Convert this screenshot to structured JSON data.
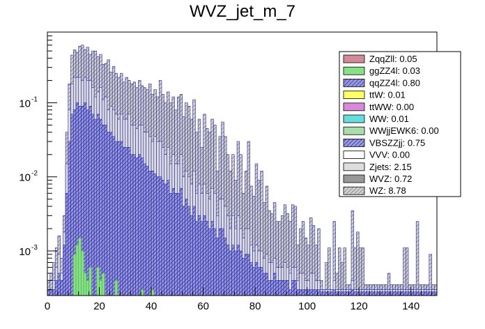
{
  "chart_data": {
    "type": "bar",
    "subtype": "stacked-histogram",
    "title": "WVZ_jet_m_7",
    "xlabel": "",
    "ylabel": "",
    "xlim": [
      0,
      150
    ],
    "ylim": [
      0.00025,
      0.9
    ],
    "yscale": "log",
    "bin_width": 1,
    "grid": false,
    "legend_position": "top-right",
    "x_ticks": [
      0,
      20,
      40,
      60,
      80,
      100,
      120,
      140
    ],
    "x_tick_labels": [
      "0",
      "20",
      "40",
      "60",
      "80",
      "100",
      "120",
      "140"
    ],
    "y_ticks": [
      0.001,
      0.01,
      0.1
    ],
    "y_tick_labels": [
      "10^{-3}",
      "10^{-2}",
      "10^{-1}"
    ],
    "legend": [
      {
        "label": "ZqqZll: 0.05",
        "color": "#d08a9a",
        "hatch": false
      },
      {
        "label": "ggZZ4l: 0.03",
        "color": "#88e088",
        "hatch": false
      },
      {
        "label": "qqZZ4l: 0.80",
        "color": "#5a5ad0",
        "hatch": true
      },
      {
        "label": "ttW: 0.01",
        "color": "#ffff66",
        "hatch": false
      },
      {
        "label": "ttWW: 0.00",
        "color": "#d88ad8",
        "hatch": false
      },
      {
        "label": "WW: 0.01",
        "color": "#66dddd",
        "hatch": false
      },
      {
        "label": "WWjjEWK6: 0.00",
        "color": "#aaddaa",
        "hatch": false
      },
      {
        "label": "VBSZZjj: 0.75",
        "color": "#8080c0",
        "hatch": true
      },
      {
        "label": "VVV: 0.00",
        "color": "#ffffff",
        "hatch": false
      },
      {
        "label": "Zjets: 2.15",
        "color": "#dddddd",
        "hatch": false
      },
      {
        "label": "WVZ: 0.72",
        "color": "#999999",
        "hatch": false
      },
      {
        "label": "WZ: 8.78",
        "color": "#b0b0b0",
        "hatch": true
      }
    ],
    "bins_low_edge": [
      0,
      1,
      2,
      3,
      4,
      5,
      6,
      7,
      8,
      9,
      10,
      11,
      12,
      13,
      14,
      15,
      16,
      17,
      18,
      19,
      20,
      21,
      22,
      23,
      24,
      25,
      26,
      27,
      28,
      29,
      30,
      31,
      32,
      33,
      34,
      35,
      36,
      37,
      38,
      39,
      40,
      41,
      42,
      43,
      44,
      45,
      46,
      47,
      48,
      49,
      50,
      51,
      52,
      53,
      54,
      55,
      56,
      57,
      58,
      59,
      60,
      61,
      62,
      63,
      64,
      65,
      66,
      67,
      68,
      69,
      70,
      71,
      72,
      73,
      74,
      75,
      76,
      77,
      78,
      79,
      80,
      81,
      82,
      83,
      84,
      85,
      86,
      87,
      88,
      89,
      90,
      91,
      92,
      93,
      94,
      95,
      96,
      97,
      98,
      99,
      100,
      101,
      102,
      103,
      104,
      105,
      106,
      107,
      108,
      109,
      110,
      111,
      112,
      113,
      114,
      115,
      116,
      117,
      118,
      119,
      120,
      121,
      122,
      123,
      124,
      125,
      126,
      127,
      128,
      129,
      130,
      131,
      132,
      133,
      134,
      135,
      136,
      137,
      138,
      139,
      140,
      141,
      142,
      143,
      144,
      145,
      146,
      147,
      148,
      149
    ],
    "series": [
      {
        "name": "WZ (stack total)",
        "values": [
          0.0004,
          0.0005,
          0.0007,
          0.0011,
          0.0016,
          0.0008,
          0.003,
          0.04,
          0.18,
          0.44,
          0.52,
          0.48,
          0.58,
          0.6,
          0.52,
          0.56,
          0.45,
          0.5,
          0.5,
          0.42,
          0.45,
          0.33,
          0.34,
          0.38,
          0.26,
          0.31,
          0.25,
          0.22,
          0.25,
          0.19,
          0.22,
          0.2,
          0.18,
          0.19,
          0.16,
          0.2,
          0.17,
          0.16,
          0.15,
          0.18,
          0.13,
          0.15,
          0.12,
          0.2,
          0.13,
          0.1,
          0.14,
          0.1,
          0.12,
          0.08,
          0.12,
          0.13,
          0.065,
          0.1,
          0.09,
          0.06,
          0.11,
          0.04,
          0.06,
          0.025,
          0.07,
          0.045,
          0.04,
          0.06,
          0.05,
          0.012,
          0.035,
          0.055,
          0.035,
          0.02,
          0.012,
          0.02,
          0.009,
          0.03,
          0.02,
          0.006,
          0.012,
          0.03,
          0.0075,
          0.0055,
          0.015,
          0.009,
          0.012,
          0.0045,
          0.0075,
          0.0035,
          0.0032,
          0.0045,
          0.0025,
          0.0025,
          0.003,
          0.0042,
          0.0032,
          0.0025,
          0.0042,
          0.004,
          0.0012,
          0.002,
          0.0025,
          0.0015,
          0.0012,
          0.0028,
          0.0022,
          0.0012,
          0.002,
          0.0004,
          0.0003,
          0.0007,
          0.0011,
          0.0003,
          0.0025,
          0.0005,
          0.0011,
          0.0007,
          0.0011,
          0.00035,
          0.00035,
          0.0035,
          0.0011,
          0.0018,
          0.0011,
          0.0011,
          0.00035,
          0.00035,
          0.00035,
          0.00035,
          0.00035,
          0.00035,
          0.00035,
          0.00035,
          0.00035,
          0.0005,
          0.00035,
          0.00035,
          0.00035,
          0.00035,
          0.00035,
          0.0011,
          0.0011,
          0.00035,
          0.00035,
          0.00035,
          0.0025,
          0.00035,
          0.00035,
          0.00035,
          0.00035,
          0.0009,
          0.00035,
          0.00035
        ]
      },
      {
        "name": "Zjets (stack below WZ)",
        "values": [
          0.0003,
          0.0003,
          0.0004,
          0.0006,
          0.0009,
          0.0005,
          0.0018,
          0.015,
          0.08,
          0.18,
          0.22,
          0.22,
          0.22,
          0.2,
          0.22,
          0.2,
          0.2,
          0.16,
          0.12,
          0.14,
          0.16,
          0.11,
          0.12,
          0.08,
          0.09,
          0.08,
          0.07,
          0.06,
          0.07,
          0.06,
          0.06,
          0.07,
          0.05,
          0.05,
          0.045,
          0.05,
          0.05,
          0.04,
          0.04,
          0.035,
          0.03,
          0.035,
          0.03,
          0.03,
          0.025,
          0.02,
          0.025,
          0.015,
          0.02,
          0.015,
          0.015,
          0.02,
          0.01,
          0.012,
          0.01,
          0.008,
          0.012,
          0.006,
          0.008,
          0.006,
          0.008,
          0.006,
          0.005,
          0.007,
          0.006,
          0.003,
          0.005,
          0.005,
          0.004,
          0.003,
          0.002,
          0.003,
          0.002,
          0.003,
          0.002,
          0.0015,
          0.002,
          0.002,
          0.0012,
          0.001,
          0.0012,
          0.001,
          0.001,
          0.0008,
          0.0009,
          0.0007,
          0.0007,
          0.0008,
          0.0006,
          0.0006,
          0.0006,
          0.0007,
          0.0006,
          0.0005,
          0.0006,
          0.0006,
          0.0004,
          0.0005,
          0.0005,
          0.0004,
          0.0004,
          0.0005,
          0.0005,
          0.0004,
          0.0004,
          0.0003,
          0.0003,
          0.0003,
          0.0003,
          0.0003,
          0.0004,
          0.0003,
          0.0003,
          0.0003,
          0.0003,
          0.0003,
          0.0003,
          0.0004,
          0.0003,
          0.0003,
          0.0003,
          0.0003,
          0.0003,
          0.0003,
          0.0003,
          0.0003,
          0.0003,
          0.0003,
          0.0003,
          0.0003,
          0.0003,
          0.0003,
          0.0003,
          0.0003,
          0.0003,
          0.0003,
          0.0003,
          0.0003,
          0.0003,
          0.0003,
          0.0003,
          0.0003,
          0.0003,
          0.0003,
          0.0003,
          0.0003,
          0.0003,
          0.0003,
          0.0003,
          0.0003
        ]
      },
      {
        "name": "qqZZ4l (stack below Zjets)",
        "values": [
          0.0003,
          0.0003,
          0.0003,
          0.0004,
          0.0005,
          0.0004,
          0.0012,
          0.006,
          0.03,
          0.07,
          0.08,
          0.1,
          0.09,
          0.09,
          0.1,
          0.08,
          0.09,
          0.07,
          0.06,
          0.07,
          0.06,
          0.05,
          0.05,
          0.04,
          0.04,
          0.035,
          0.03,
          0.03,
          0.03,
          0.025,
          0.025,
          0.025,
          0.02,
          0.02,
          0.018,
          0.02,
          0.018,
          0.015,
          0.014,
          0.012,
          0.012,
          0.011,
          0.01,
          0.01,
          0.009,
          0.008,
          0.009,
          0.006,
          0.007,
          0.006,
          0.006,
          0.007,
          0.004,
          0.005,
          0.004,
          0.003,
          0.004,
          0.0025,
          0.003,
          0.0025,
          0.003,
          0.0025,
          0.002,
          0.0025,
          0.002,
          0.0015,
          0.002,
          0.002,
          0.0015,
          0.0012,
          0.001,
          0.0012,
          0.001,
          0.0012,
          0.001,
          0.0008,
          0.0009,
          0.0009,
          0.0007,
          0.0006,
          0.0007,
          0.0006,
          0.0006,
          0.0005,
          0.0005,
          0.0004,
          0.0004,
          0.0005,
          0.0004,
          0.0004,
          0.0004,
          0.0004,
          0.0004,
          0.0003,
          0.0004,
          0.0004,
          0.0003,
          0.0003,
          0.0003,
          0.0003,
          0.0003,
          0.0003,
          0.0003,
          0.0003,
          0.0003,
          0.00028,
          0.00028,
          0.00028,
          0.00028,
          0.00028,
          0.0003,
          0.00028,
          0.00028,
          0.00028,
          0.00028,
          0.00028,
          0.00028,
          0.0003,
          0.00028,
          0.00028,
          0.00028,
          0.00028,
          0.00028,
          0.00028,
          0.00028,
          0.00028,
          0.00028,
          0.00028,
          0.00028,
          0.00028,
          0.00028,
          0.00028,
          0.00028,
          0.00028,
          0.00028,
          0.00028,
          0.00028,
          0.00028,
          0.00028,
          0.00028,
          0.00028,
          0.00028,
          0.00028,
          0.00028,
          0.00028,
          0.00028,
          0.00028,
          0.00028,
          0.00028,
          0.00028
        ]
      },
      {
        "name": "ggZZ4l (stack bottom)",
        "values": [
          0,
          0,
          0,
          0,
          0,
          0,
          0,
          0,
          0,
          0,
          0.0009,
          0.0012,
          0.0015,
          0.001,
          0.0005,
          0.0004,
          0.0006,
          0,
          0,
          0.0006,
          0.0004,
          0.0005,
          0,
          0,
          0,
          0,
          0.0004,
          0,
          0,
          0,
          0,
          0,
          0,
          0,
          0,
          0,
          0.0003,
          0,
          0,
          0,
          0.0003,
          0,
          0,
          0,
          0,
          0,
          0,
          0,
          0,
          0,
          0,
          0,
          0,
          0,
          0,
          0,
          0,
          0,
          0,
          0,
          0,
          0,
          0,
          0,
          0,
          0,
          0,
          0,
          0,
          0,
          0,
          0,
          0,
          0,
          0,
          0,
          0,
          0,
          0,
          0,
          0,
          0,
          0,
          0,
          0,
          0,
          0,
          0,
          0,
          0,
          0,
          0,
          0,
          0,
          0,
          0,
          0,
          0,
          0,
          0,
          0,
          0,
          0,
          0,
          0,
          0,
          0,
          0,
          0,
          0,
          0,
          0,
          0,
          0,
          0,
          0,
          0,
          0,
          0,
          0,
          0,
          0,
          0,
          0,
          0,
          0,
          0,
          0,
          0,
          0,
          0,
          0,
          0,
          0,
          0,
          0,
          0,
          0,
          0,
          0,
          0,
          0,
          0,
          0,
          0,
          0,
          0,
          0
        ]
      }
    ]
  }
}
